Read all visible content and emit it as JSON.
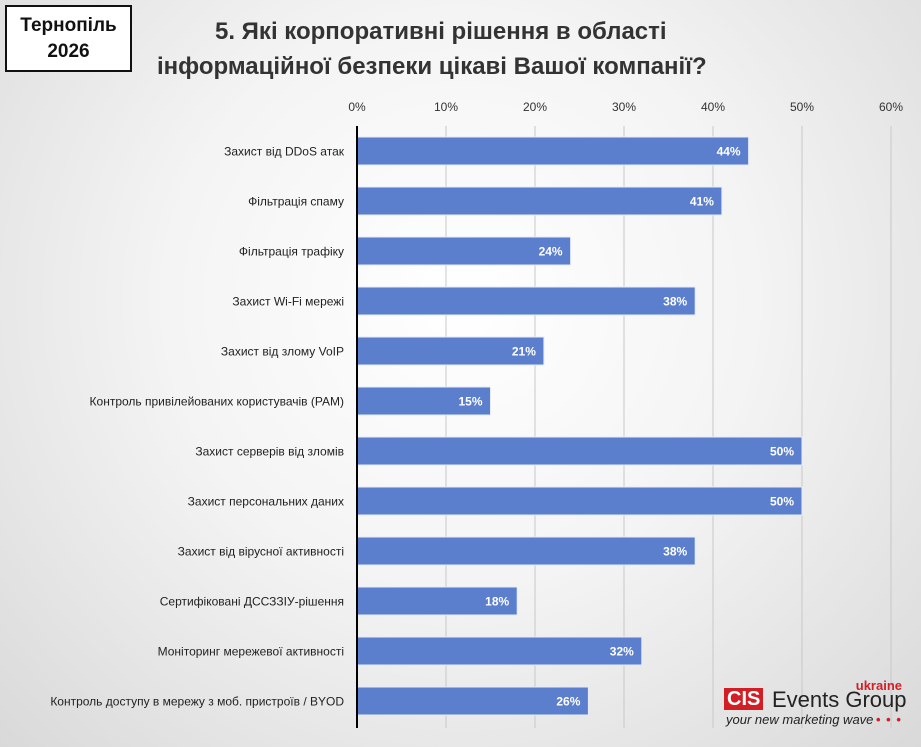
{
  "badge": {
    "line1": "Тернопіль",
    "line2": "2026"
  },
  "title": {
    "line1": "5. Які корпоративні рішення в області",
    "line2": "інформаційної безпеки цікаві Вашої компанії?"
  },
  "logo": {
    "ukraine": "ukraine",
    "cis": "CIS",
    "events_group": "Events Group",
    "tagline": "your new marketing wave",
    "dots": "• • •"
  },
  "colors": {
    "bar": "#5b7fcc",
    "axis": "#000000",
    "grid": "#c8c8c8",
    "bar_label": "#ffffff"
  },
  "chart_data": {
    "type": "bar",
    "orientation": "horizontal",
    "title": "5. Які корпоративні рішення в області інформаційної безпеки цікаві Вашої компанії?",
    "categories": [
      "Захист від DDoS атак",
      "Фільтрація спаму",
      "Фільтрація трафіку",
      "Захист Wi-Fi мережі",
      "Захист від злому VoIP",
      "Контроль привілейованих користувачів (PAM)",
      "Захист серверів від зломів",
      "Захист персональних даних",
      "Захист від вірусної активності",
      "Сертифіковані ДССЗЗІУ-рішення",
      "Моніторинг мережевої активності",
      "Контроль доступу в мережу з моб. пристроїв / BYOD"
    ],
    "values": [
      44,
      41,
      24,
      38,
      21,
      15,
      50,
      50,
      38,
      18,
      32,
      26
    ],
    "value_labels": [
      "44%",
      "41%",
      "24%",
      "38%",
      "21%",
      "15%",
      "50%",
      "50%",
      "38%",
      "18%",
      "32%",
      "26%"
    ],
    "xlim": [
      0,
      60
    ],
    "x_ticks": [
      0,
      10,
      20,
      30,
      40,
      50,
      60
    ],
    "x_tick_labels": [
      "0%",
      "10%",
      "20%",
      "30%",
      "40%",
      "50%",
      "60%"
    ],
    "axis_position": "top",
    "grid": true
  }
}
